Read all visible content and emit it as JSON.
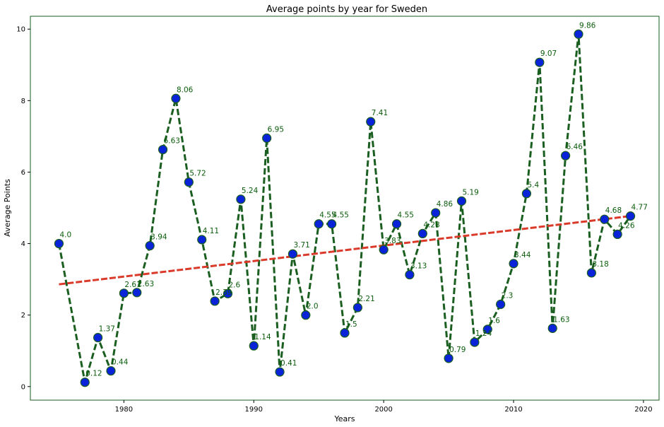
{
  "chart_data": {
    "type": "line",
    "title": "Average points by year for Sweden",
    "xlabel": "Years",
    "ylabel": "Average Points",
    "xlim": [
      1972.8,
      2021.2
    ],
    "ylim": [
      -0.38,
      10.36
    ],
    "x_ticks": [
      1980,
      1990,
      2000,
      2010,
      2020
    ],
    "x_tick_labels": [
      "1980",
      "1990",
      "2000",
      "2010",
      "2020"
    ],
    "y_ticks": [
      0,
      2,
      4,
      6,
      8,
      10
    ],
    "y_tick_labels": [
      "0",
      "2",
      "4",
      "6",
      "8",
      "10"
    ],
    "grid": false,
    "series": [
      {
        "x": [
          1975,
          1977,
          1978,
          1979,
          1980,
          1981,
          1982,
          1983,
          1984,
          1985,
          1986,
          1987,
          1988,
          1989,
          1990,
          1991,
          1992,
          1993,
          1994,
          1995,
          1996,
          1997,
          1998,
          1999,
          2000,
          2001,
          2002,
          2003,
          2004,
          2005,
          2006,
          2007,
          2008,
          2009,
          2010,
          2011,
          2012,
          2013,
          2014,
          2015,
          2016,
          2017,
          2018,
          2019
        ],
        "y": [
          4.0,
          0.12,
          1.37,
          0.44,
          2.61,
          2.63,
          3.94,
          6.63,
          8.06,
          5.72,
          4.11,
          2.39,
          2.6,
          5.24,
          1.14,
          6.95,
          0.41,
          3.71,
          2.0,
          4.55,
          4.55,
          1.5,
          2.21,
          7.41,
          3.83,
          4.55,
          3.13,
          4.28,
          4.86,
          0.79,
          5.19,
          1.24,
          1.6,
          2.3,
          3.44,
          5.4,
          9.07,
          1.63,
          6.46,
          9.86,
          3.18,
          4.68,
          4.26,
          4.77
        ],
        "data_labels": [
          "4.0",
          "0.12",
          "1.37",
          "0.44",
          "2.61",
          "2.63",
          "3.94",
          "6.63",
          "8.06",
          "5.72",
          "4.11",
          "2.39",
          "2.6",
          "5.24",
          "1.14",
          "6.95",
          "0.41",
          "3.71",
          "2.0",
          "4.55",
          "4.55",
          "1.5",
          "2.21",
          "7.41",
          "3.83",
          "4.55",
          "3.13",
          "4.28",
          "4.86",
          "0.79",
          "5.19",
          "1.24",
          "1.6",
          "2.3",
          "3.44",
          "5.4",
          "9.07",
          "1.63",
          "6.46",
          "9.86",
          "3.18",
          "4.68",
          "4.26",
          "4.77"
        ],
        "line_color": "#1a5e20",
        "line_style": "dashed",
        "marker_fill": "#0a22d8",
        "marker_edge": "#1a5e20",
        "label_color": "#0b5d0b"
      },
      {
        "x": [
          1975,
          2019
        ],
        "y": [
          2.86,
          4.77
        ],
        "line_color": "#d93a2a",
        "line_style": "dashed"
      }
    ],
    "colors": {
      "axis_frame": "#1a5e20",
      "background": "#ffffff"
    }
  }
}
